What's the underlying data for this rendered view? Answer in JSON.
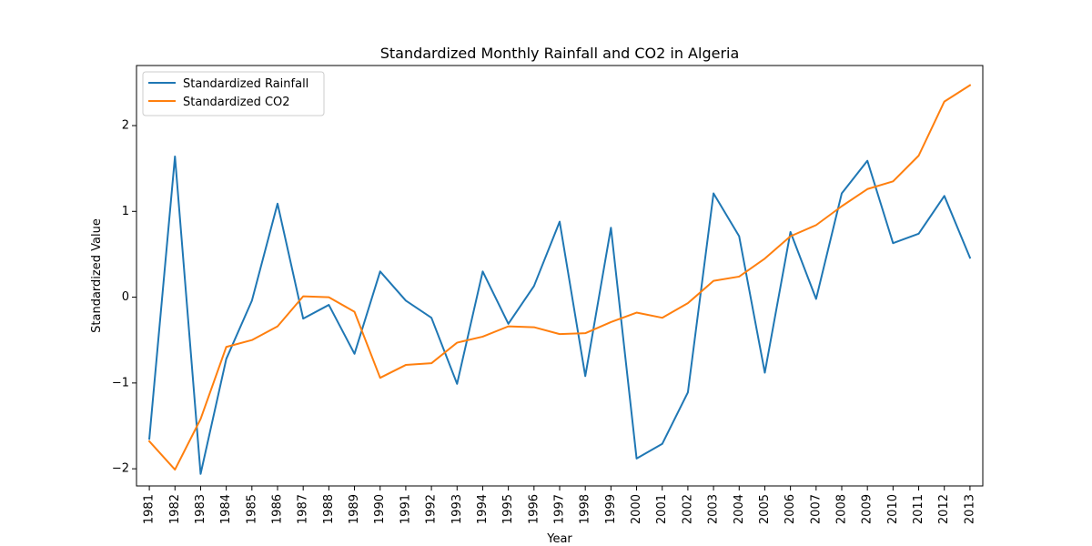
{
  "colors": {
    "rainfall": "#1f77b4",
    "co2": "#ff7f0e",
    "axes": "#000000",
    "legend_border": "#cccccc"
  },
  "chart_data": {
    "type": "line",
    "title": "Standardized Monthly Rainfall and CO2 in Algeria",
    "xlabel": "Year",
    "ylabel": "Standardized Value",
    "x": [
      1981,
      1982,
      1983,
      1984,
      1985,
      1986,
      1987,
      1988,
      1989,
      1990,
      1991,
      1992,
      1993,
      1994,
      1995,
      1996,
      1997,
      1998,
      1999,
      2000,
      2001,
      2002,
      2003,
      2004,
      2005,
      2006,
      2007,
      2008,
      2009,
      2010,
      2011,
      2012,
      2013
    ],
    "x_tick_labels": [
      "1981",
      "1982",
      "1983",
      "1984",
      "1985",
      "1986",
      "1987",
      "1988",
      "1989",
      "1990",
      "1991",
      "1992",
      "1993",
      "1994",
      "1995",
      "1996",
      "1997",
      "1998",
      "1999",
      "2000",
      "2001",
      "2002",
      "2003",
      "2004",
      "2005",
      "2006",
      "2007",
      "2008",
      "2009",
      "2010",
      "2011",
      "2012",
      "2013"
    ],
    "y_ticks": [
      -2,
      -1,
      0,
      1,
      2
    ],
    "y_tick_labels": [
      "−2",
      "−1",
      "0",
      "1",
      "2"
    ],
    "ylim": [
      -2.2,
      2.7
    ],
    "xlim": [
      1980.5,
      2013.5
    ],
    "grid": false,
    "legend_placement": "top-left",
    "series": [
      {
        "name": "Standardized Rainfall",
        "color_key": "rainfall",
        "values": [
          -1.65,
          1.64,
          -2.06,
          -0.72,
          -0.04,
          1.09,
          -0.25,
          -0.09,
          -0.66,
          0.3,
          -0.04,
          -0.24,
          -1.01,
          0.3,
          -0.31,
          0.13,
          0.88,
          -0.92,
          0.81,
          -1.88,
          -1.71,
          -1.11,
          1.21,
          0.71,
          -0.88,
          0.76,
          -0.02,
          1.21,
          1.59,
          0.63,
          0.74,
          1.18,
          0.46
        ]
      },
      {
        "name": "Standardized CO2",
        "color_key": "co2",
        "values": [
          -1.68,
          -2.01,
          -1.42,
          -0.58,
          -0.5,
          -0.34,
          0.01,
          0.0,
          -0.17,
          -0.94,
          -0.79,
          -0.77,
          -0.53,
          -0.46,
          -0.34,
          -0.35,
          -0.43,
          -0.42,
          -0.29,
          -0.18,
          -0.24,
          -0.07,
          0.19,
          0.24,
          0.45,
          0.71,
          0.84,
          1.06,
          1.26,
          1.35,
          1.65,
          2.28,
          2.47
        ]
      }
    ]
  }
}
